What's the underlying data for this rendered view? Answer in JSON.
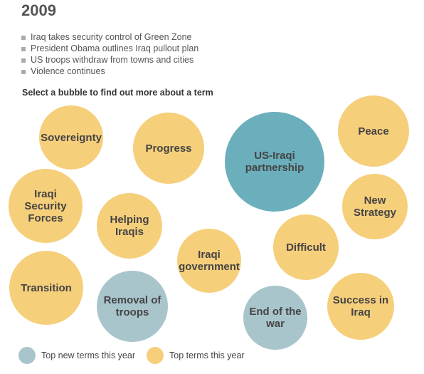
{
  "title": "2009",
  "bullets": [
    "Iraq takes security control of Green Zone",
    "President Obama outlines Iraq pullout plan",
    "US troops withdraw from towns and cities",
    "Violence continues"
  ],
  "instruction": "Select a bubble to find out more about a term",
  "bubbles": [
    {
      "label": "Sovereignty",
      "color": "#f6cf7b"
    },
    {
      "label": "Progress",
      "color": "#f6cf7b"
    },
    {
      "label": "US-Iraqi partnership",
      "color": "#6aafbb"
    },
    {
      "label": "Peace",
      "color": "#f6cf7b"
    },
    {
      "label": "Iraqi Security Forces",
      "color": "#f6cf7b"
    },
    {
      "label": "Helping Iraqis",
      "color": "#f6cf7b"
    },
    {
      "label": "New Strategy",
      "color": "#f6cf7b"
    },
    {
      "label": "Iraqi government",
      "color": "#f6cf7b"
    },
    {
      "label": "Difficult",
      "color": "#f6cf7b"
    },
    {
      "label": "Transition",
      "color": "#f6cf7b"
    },
    {
      "label": "Removal of troops",
      "color": "#a9c5cc"
    },
    {
      "label": "End of the war",
      "color": "#a9c5cc"
    },
    {
      "label": "Success in Iraq",
      "color": "#f6cf7b"
    }
  ],
  "legend": [
    {
      "label": "Top new terms this year",
      "color": "#a9c5cc"
    },
    {
      "label": "Top terms this year",
      "color": "#f6cf7b"
    }
  ]
}
